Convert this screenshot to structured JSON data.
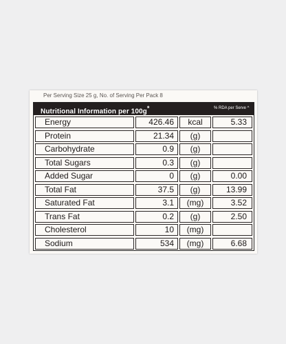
{
  "serving_text": "Per Serving Size 25 g, No. of Serving Per Pack 8",
  "header": {
    "title": "Nutritional Information per 100g",
    "title_mark": "*",
    "rda_label": "% RDA per Serve ^"
  },
  "rows": [
    {
      "name": "Energy",
      "value": "426.46",
      "unit": "kcal",
      "rda": "5.33"
    },
    {
      "name": "Protein",
      "value": "21.34",
      "unit": "(g)",
      "rda": ""
    },
    {
      "name": "Carbohydrate",
      "value": "0.9",
      "unit": "(g)",
      "rda": ""
    },
    {
      "name": "Total Sugars",
      "value": "0.3",
      "unit": "(g)",
      "rda": ""
    },
    {
      "name": "Added Sugar",
      "value": "0",
      "unit": "(g)",
      "rda": "0.00"
    },
    {
      "name": "Total Fat",
      "value": "37.5",
      "unit": "(g)",
      "rda": "13.99"
    },
    {
      "name": "Saturated Fat",
      "value": "3.1",
      "unit": "(mg)",
      "rda": "3.52"
    },
    {
      "name": "Trans Fat",
      "value": "0.2",
      "unit": "(g)",
      "rda": "2.50"
    },
    {
      "name": "Cholesterol",
      "value": "10",
      "unit": "(mg)",
      "rda": ""
    },
    {
      "name": "Sodium",
      "value": "534",
      "unit": "(mg)",
      "rda": "6.68"
    }
  ]
}
